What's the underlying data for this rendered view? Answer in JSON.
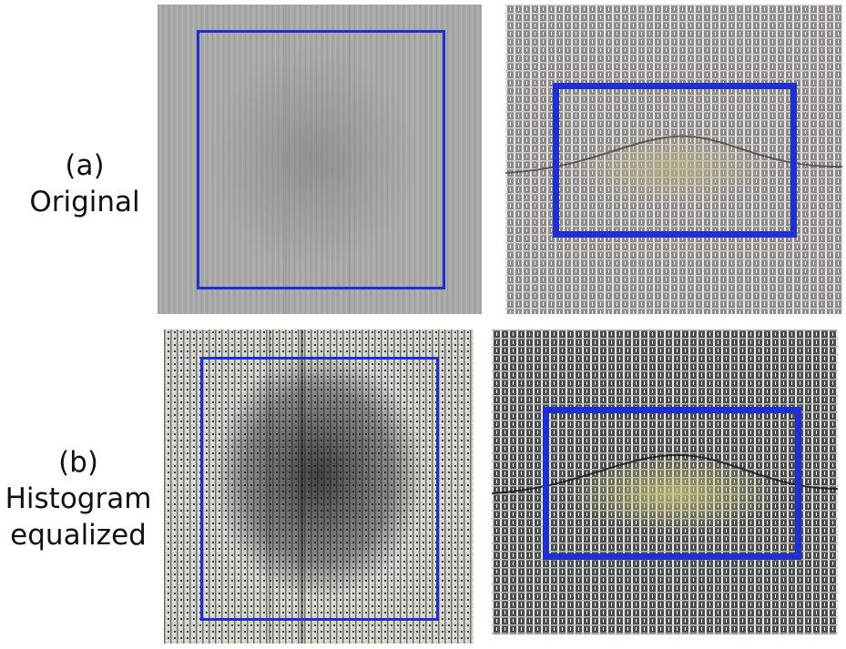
{
  "rows": [
    {
      "tag": "(a)",
      "name": "Original"
    },
    {
      "tag": "(b)",
      "name": "Histogram equalized",
      "name_lines": [
        "Histogram",
        "equalized"
      ]
    }
  ],
  "colors": {
    "box": "#1f2fd6",
    "original_fabric": "#a8a8a8",
    "equalized_fabric": "#d8d8d2",
    "defect_tint": "#b9b489"
  }
}
